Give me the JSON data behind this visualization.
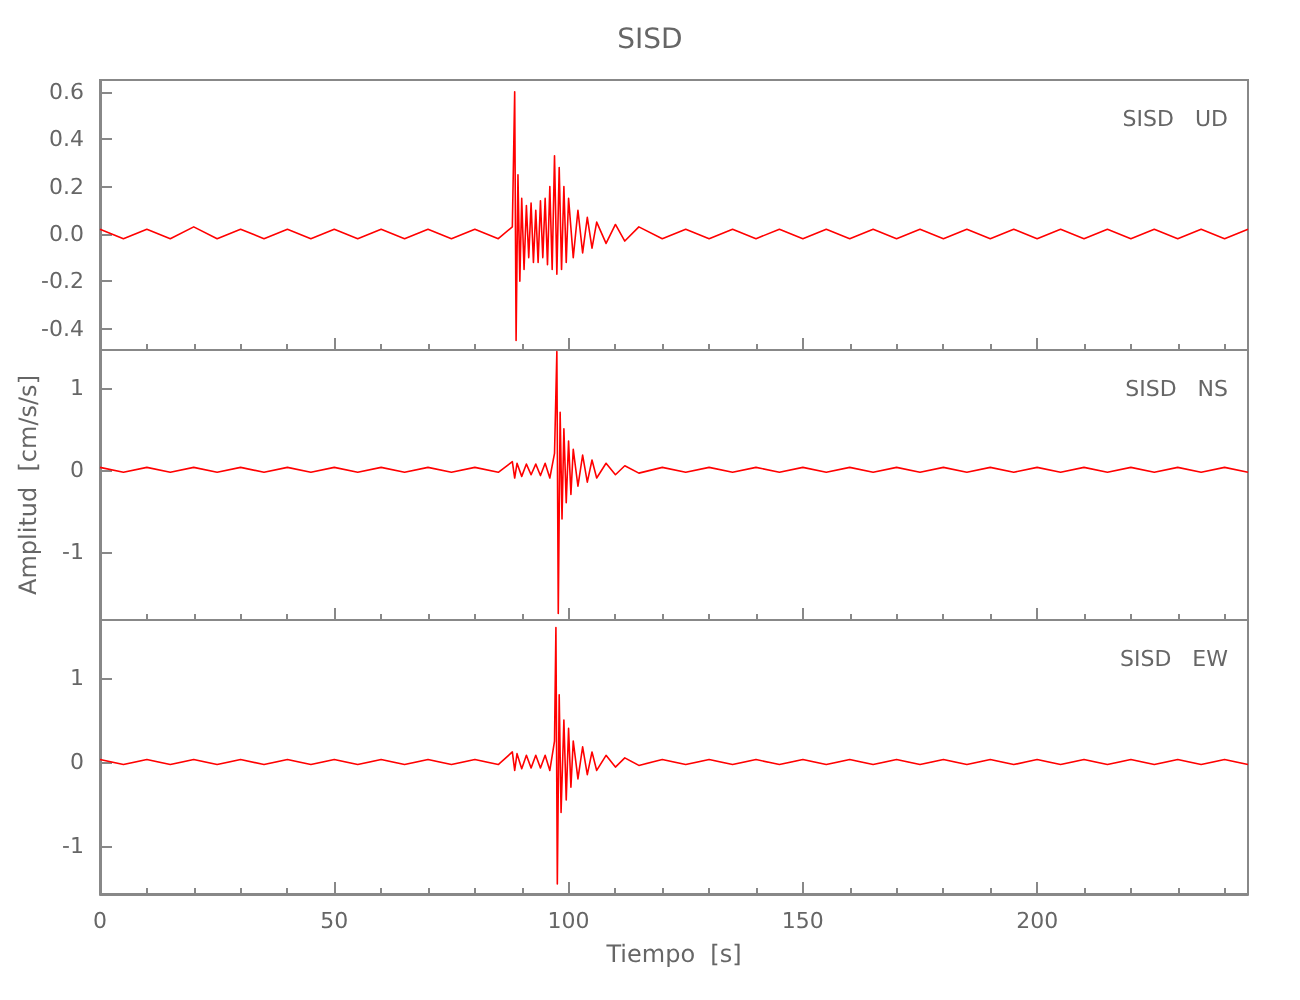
{
  "chart_data": [
    {
      "type": "line",
      "title": "SISD",
      "annotations": [
        "SISD   UD"
      ],
      "tick_labels": "y",
      "grid": false,
      "xlim": [
        0,
        245
      ],
      "xticks": [
        0,
        50,
        100,
        150,
        200
      ],
      "ylim": [
        -0.49,
        0.65
      ],
      "yticks": [
        -0.4,
        -0.2,
        {
          "value": 0,
          "label": "0.0"
        },
        0.2,
        0.4,
        0.6
      ],
      "series": [
        {
          "color": "#ff0000",
          "x": [
            0,
            5,
            10,
            15,
            20,
            25,
            30,
            35,
            40,
            45,
            50,
            55,
            60,
            65,
            70,
            75,
            80,
            85,
            88,
            88.5,
            88.8,
            89.2,
            89.6,
            90,
            90.5,
            91,
            91.5,
            92,
            92.5,
            93,
            93.5,
            94,
            94.5,
            95,
            95.5,
            96,
            96.5,
            97,
            97.5,
            98,
            98.5,
            99,
            99.5,
            100,
            101,
            102,
            103,
            104,
            105,
            106,
            108,
            110,
            112,
            115,
            120,
            125,
            130,
            135,
            140,
            145,
            150,
            155,
            160,
            165,
            170,
            175,
            180,
            185,
            190,
            195,
            200,
            205,
            210,
            215,
            220,
            225,
            230,
            235,
            240,
            245
          ],
          "values": [
            0.02,
            -0.02,
            0.02,
            -0.02,
            0.03,
            -0.02,
            0.02,
            -0.02,
            0.02,
            -0.02,
            0.02,
            -0.02,
            0.02,
            -0.02,
            0.02,
            -0.02,
            0.02,
            -0.02,
            0.03,
            0.6,
            -0.45,
            0.25,
            -0.2,
            0.15,
            -0.15,
            0.12,
            -0.1,
            0.13,
            -0.12,
            0.1,
            -0.12,
            0.14,
            -0.1,
            0.15,
            -0.13,
            0.2,
            -0.15,
            0.33,
            -0.17,
            0.28,
            -0.15,
            0.2,
            -0.12,
            0.15,
            -0.1,
            0.1,
            -0.08,
            0.07,
            -0.06,
            0.05,
            -0.04,
            0.04,
            -0.03,
            0.03,
            -0.02,
            0.02,
            -0.02,
            0.02,
            -0.02,
            0.02,
            -0.02,
            0.02,
            -0.02,
            0.02,
            -0.02,
            0.02,
            -0.02,
            0.02,
            -0.02,
            0.02,
            -0.02,
            0.02,
            -0.02,
            0.02,
            -0.02,
            0.02,
            -0.02,
            0.02,
            -0.02,
            0.02
          ]
        }
      ]
    },
    {
      "type": "line",
      "annotations": [
        "SISD   NS"
      ],
      "ylabel": "Amplitud  [cm/s/s]",
      "tick_labels": "y",
      "grid": false,
      "xlim": [
        0,
        245
      ],
      "xticks": [
        0,
        50,
        100,
        150,
        200
      ],
      "ylim": [
        -1.83,
        1.46
      ],
      "yticks": [
        -1,
        0,
        1
      ],
      "series": [
        {
          "color": "#ff0000",
          "x": [
            0,
            5,
            10,
            15,
            20,
            25,
            30,
            35,
            40,
            45,
            50,
            55,
            60,
            65,
            70,
            75,
            80,
            85,
            88,
            88.5,
            89,
            90,
            91,
            92,
            93,
            94,
            95,
            96,
            97,
            97.5,
            97.8,
            98.2,
            98.6,
            99,
            99.5,
            100,
            100.5,
            101,
            102,
            103,
            104,
            105,
            106,
            108,
            110,
            112,
            115,
            120,
            125,
            130,
            135,
            140,
            145,
            150,
            155,
            160,
            165,
            170,
            175,
            180,
            185,
            190,
            195,
            200,
            205,
            210,
            215,
            220,
            225,
            230,
            235,
            240,
            245
          ],
          "values": [
            0.03,
            -0.03,
            0.03,
            -0.03,
            0.03,
            -0.03,
            0.03,
            -0.03,
            0.03,
            -0.03,
            0.03,
            -0.03,
            0.03,
            -0.03,
            0.03,
            -0.03,
            0.03,
            -0.03,
            0.1,
            -0.1,
            0.08,
            -0.08,
            0.07,
            -0.06,
            0.07,
            -0.07,
            0.08,
            -0.1,
            0.2,
            1.44,
            -1.75,
            0.7,
            -0.6,
            0.5,
            -0.4,
            0.35,
            -0.3,
            0.25,
            -0.2,
            0.18,
            -0.15,
            0.12,
            -0.1,
            0.08,
            -0.06,
            0.05,
            -0.04,
            0.03,
            -0.03,
            0.03,
            -0.03,
            0.03,
            -0.03,
            0.03,
            -0.03,
            0.03,
            -0.03,
            0.03,
            -0.03,
            0.03,
            -0.03,
            0.03,
            -0.03,
            0.03,
            -0.03,
            0.03,
            -0.03,
            0.03,
            -0.03,
            0.03,
            -0.03,
            0.03,
            -0.03
          ]
        }
      ]
    },
    {
      "type": "line",
      "annotations": [
        "SISD   EW"
      ],
      "xlabel": "Tiempo  [s]",
      "grid": false,
      "xlim": [
        0,
        245
      ],
      "xticks": [
        0,
        50,
        100,
        150,
        200
      ],
      "ylim": [
        -1.57,
        1.69
      ],
      "yticks": [
        -1,
        0,
        1
      ],
      "series": [
        {
          "color": "#ff0000",
          "x": [
            0,
            5,
            10,
            15,
            20,
            25,
            30,
            35,
            40,
            45,
            50,
            55,
            60,
            65,
            70,
            75,
            80,
            85,
            88,
            88.5,
            89,
            90,
            91,
            92,
            93,
            94,
            95,
            96,
            97,
            97.3,
            97.6,
            98,
            98.4,
            99,
            99.5,
            100,
            100.5,
            101,
            102,
            103,
            104,
            105,
            106,
            108,
            110,
            112,
            115,
            120,
            125,
            130,
            135,
            140,
            145,
            150,
            155,
            160,
            165,
            170,
            175,
            180,
            185,
            190,
            195,
            200,
            205,
            210,
            215,
            220,
            225,
            230,
            235,
            240,
            245
          ],
          "values": [
            0.03,
            -0.03,
            0.03,
            -0.03,
            0.03,
            -0.03,
            0.03,
            -0.03,
            0.03,
            -0.03,
            0.03,
            -0.03,
            0.03,
            -0.03,
            0.03,
            -0.03,
            0.03,
            -0.03,
            0.12,
            -0.1,
            0.1,
            -0.08,
            0.08,
            -0.07,
            0.08,
            -0.07,
            0.08,
            -0.1,
            0.25,
            1.6,
            -1.45,
            0.8,
            -0.6,
            0.5,
            -0.45,
            0.4,
            -0.3,
            0.25,
            -0.2,
            0.18,
            -0.15,
            0.12,
            -0.1,
            0.08,
            -0.06,
            0.05,
            -0.04,
            0.03,
            -0.03,
            0.03,
            -0.03,
            0.03,
            -0.03,
            0.03,
            -0.03,
            0.03,
            -0.03,
            0.03,
            -0.03,
            0.03,
            -0.03,
            0.03,
            -0.03,
            0.03,
            -0.03,
            0.03,
            -0.03,
            0.03,
            -0.03,
            0.03,
            -0.03,
            0.03,
            -0.03
          ]
        }
      ]
    }
  ]
}
